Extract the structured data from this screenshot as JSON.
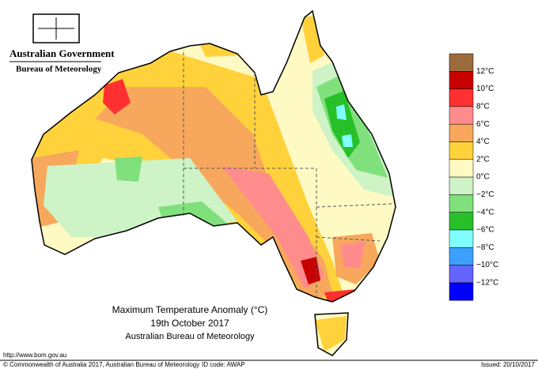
{
  "header": {
    "org": "Australian Government",
    "agency": "Bureau of Meteorology"
  },
  "title": {
    "line1": "Maximum Temperature Anomaly (°C)",
    "line2": "19th October 2017",
    "line3": "Australian Bureau of Meteorology"
  },
  "legend": {
    "swatches": [
      "#9c6b3c",
      "#c80000",
      "#ff3030",
      "#ff8c8c",
      "#f7a85c",
      "#ffd23c",
      "#fffac4",
      "#cdf3c6",
      "#80e07c",
      "#28c028",
      "#80ffff",
      "#3ca0ff",
      "#6464ff",
      "#0000ff"
    ],
    "labels": [
      "12°C",
      "10°C",
      "8°C",
      "6°C",
      "4°C",
      "2°C",
      "0°C",
      "−2°C",
      "−4°C",
      "−6°C",
      "−8°C",
      "−10°C",
      "−12°C"
    ]
  },
  "footer": {
    "url": "http://www.bom.gov.au",
    "copyright": "© Commonwealth of Australia 2017, Australian Bureau of Meteorology",
    "id_code": "ID code: AWAP",
    "issued": "Issued: 20/10/2017"
  }
}
